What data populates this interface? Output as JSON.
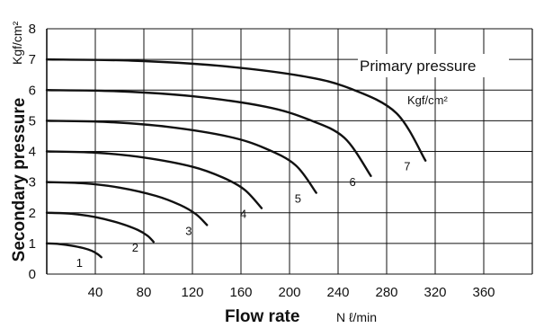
{
  "chart_data": {
    "type": "line",
    "title": "",
    "xlabel": "Flow rate",
    "xlabel_unit": "N ℓ/min",
    "ylabel": "Secondary pressure",
    "ylabel_unit": "Kgf/cm²",
    "xlim": [
      0,
      400
    ],
    "ylim": [
      0,
      8
    ],
    "x_ticks": [
      40,
      80,
      120,
      160,
      200,
      240,
      280,
      320,
      360
    ],
    "y_ticks": [
      0,
      1,
      2,
      3,
      4,
      5,
      6,
      7,
      8
    ],
    "grid": true,
    "annotation": "Primary pressure",
    "annotation_unit": "Kgf/cm²",
    "series": [
      {
        "name": "1",
        "x": [
          0,
          10,
          20,
          30,
          37,
          42,
          45
        ],
        "y": [
          1.0,
          0.98,
          0.93,
          0.85,
          0.76,
          0.65,
          0.55
        ]
      },
      {
        "name": "2",
        "x": [
          0,
          20,
          40,
          60,
          75,
          83,
          88
        ],
        "y": [
          2.0,
          1.97,
          1.86,
          1.66,
          1.44,
          1.25,
          1.05
        ]
      },
      {
        "name": "3",
        "x": [
          0,
          30,
          60,
          90,
          110,
          123,
          132
        ],
        "y": [
          3.0,
          2.96,
          2.82,
          2.55,
          2.25,
          1.95,
          1.6
        ]
      },
      {
        "name": "4",
        "x": [
          0,
          40,
          80,
          120,
          145,
          163,
          177
        ],
        "y": [
          4.0,
          3.96,
          3.8,
          3.5,
          3.15,
          2.75,
          2.15
        ]
      },
      {
        "name": "5",
        "x": [
          0,
          50,
          100,
          150,
          180,
          205,
          222
        ],
        "y": [
          5.0,
          4.96,
          4.8,
          4.48,
          4.1,
          3.55,
          2.65
        ]
      },
      {
        "name": "6",
        "x": [
          0,
          60,
          120,
          180,
          215,
          245,
          267
        ],
        "y": [
          6.0,
          5.96,
          5.8,
          5.46,
          5.05,
          4.45,
          3.2
        ]
      },
      {
        "name": "7",
        "x": [
          0,
          70,
          140,
          210,
          250,
          288,
          312
        ],
        "y": [
          7.0,
          6.96,
          6.8,
          6.46,
          6.05,
          5.25,
          3.7
        ]
      }
    ],
    "curve_label_points": [
      {
        "name": "1",
        "x": 42,
        "y": 0.55
      },
      {
        "name": "2",
        "x": 88,
        "y": 1.05
      },
      {
        "name": "3",
        "x": 132,
        "y": 1.6
      },
      {
        "name": "4",
        "x": 177,
        "y": 2.15
      },
      {
        "name": "5",
        "x": 222,
        "y": 2.65
      },
      {
        "name": "6",
        "x": 267,
        "y": 3.2
      },
      {
        "name": "7",
        "x": 312,
        "y": 3.7
      }
    ]
  }
}
